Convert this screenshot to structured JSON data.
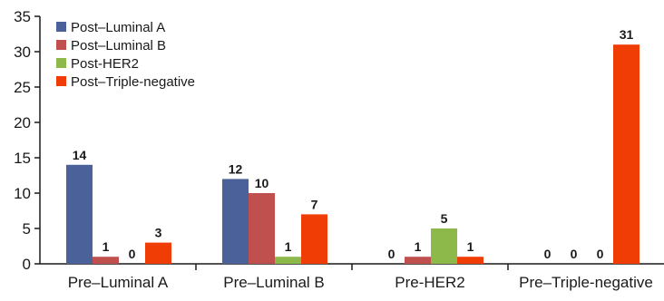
{
  "chart_data": {
    "type": "bar",
    "title": "",
    "xlabel": "",
    "ylabel": "",
    "ylim": [
      0,
      35
    ],
    "yticks": [
      0,
      5,
      10,
      15,
      20,
      25,
      30,
      35
    ],
    "grid": false,
    "legend_position": "top-left",
    "categories": [
      "Pre–Luminal A",
      "Pre–Luminal B",
      "Pre-HER2",
      "Pre–Triple-negative"
    ],
    "series": [
      {
        "name": "Post–Luminal A",
        "color": "#4a6299",
        "values": [
          14,
          12,
          0,
          0
        ]
      },
      {
        "name": "Post–Luminal B",
        "color": "#c0504d",
        "values": [
          1,
          10,
          1,
          0
        ]
      },
      {
        "name": "Post-HER2",
        "color": "#8db84a",
        "values": [
          0,
          1,
          5,
          0
        ]
      },
      {
        "name": "Post–Triple-negative",
        "color": "#f03c05",
        "values": [
          3,
          7,
          1,
          31
        ]
      }
    ]
  }
}
